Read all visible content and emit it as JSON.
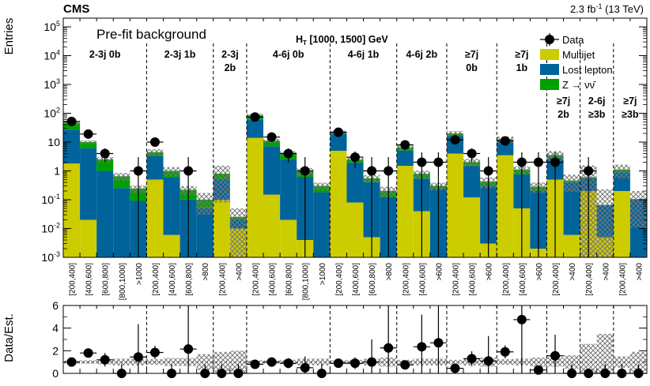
{
  "header": {
    "experiment": "CMS",
    "lumi": "2.3 fb",
    "lumi_sup": "-1",
    "energy": " (13 TeV)"
  },
  "chart_data": [
    {
      "type": "bar",
      "stacked": true,
      "yscale": "log",
      "ylabel": "Entries",
      "title": "Pre-fit background",
      "ht_label_main": "H",
      "ht_label_sub": "T",
      "ht_label_rest": " [1000, 1500] GeV",
      "ylim": [
        0.001,
        200000
      ],
      "ytick_labels": [
        "10^{-3}",
        "10^{-2}",
        "10^{-1}",
        "1",
        "10",
        "10^{2}",
        "10^{3}",
        "10^{4}",
        "10^{5}"
      ],
      "categories": [
        "[200,400]",
        "[400,600]",
        "[600,800]",
        "[800,1000]",
        ">1000",
        "[200,400]",
        "[400,600]",
        "[600,800]",
        ">800",
        "[200,400]",
        ">400",
        "[200,400]",
        "[400,600]",
        "[600,800]",
        "[800,1000]",
        ">1000",
        "[200,400]",
        "[400,600]",
        "[600,800]",
        ">800",
        "[200,400]",
        "[400,600]",
        ">600",
        "[200,400]",
        "[400,600]",
        ">600",
        "[200,400]",
        "[400,600]",
        ">600",
        "[200,400]",
        ">400",
        "[200,400]",
        ">400",
        "[200,400]",
        ">400"
      ],
      "regions": [
        {
          "label": [
            "2-3j 0b"
          ],
          "start": 0,
          "end": 5
        },
        {
          "label": [
            "2-3j 1b"
          ],
          "start": 5,
          "end": 9
        },
        {
          "label": [
            "2-3j",
            "2b"
          ],
          "start": 9,
          "end": 11
        },
        {
          "label": [
            "4-6j 0b"
          ],
          "start": 11,
          "end": 16
        },
        {
          "label": [
            "4-6j 1b"
          ],
          "start": 16,
          "end": 20
        },
        {
          "label": [
            "4-6j 2b"
          ],
          "start": 20,
          "end": 23
        },
        {
          "label": [
            "≥7j",
            "0b"
          ],
          "start": 23,
          "end": 26
        },
        {
          "label": [
            "≥7j",
            "1b"
          ],
          "start": 26,
          "end": 29
        },
        {
          "label": [
            "≥7j",
            "2b"
          ],
          "start": 29,
          "end": 31
        },
        {
          "label": [
            "2-6j",
            "≥3b"
          ],
          "start": 31,
          "end": 33
        },
        {
          "label": [
            "≥7j",
            "≥3b"
          ],
          "start": 33,
          "end": 35
        }
      ],
      "legend": [
        {
          "name": "Data",
          "kind": "marker"
        },
        {
          "name": "Multijet",
          "kind": "fill",
          "color": "#cccc00"
        },
        {
          "name": "Lost lepton",
          "kind": "fill",
          "color": "#00649b"
        },
        {
          "name": "Z → νν̄",
          "kind": "fill",
          "color": "#00a000"
        }
      ],
      "legend_position": "top-right",
      "colors": {
        "multijet": "#cccc00",
        "lostlepton": "#00649b",
        "zinv": "#00a000",
        "data": "#000000",
        "uncertainty": "#777777"
      },
      "series": [
        {
          "name": "Multijet",
          "values": [
            1.8,
            0.02,
            0.001,
            0.001,
            0.001,
            0.5,
            0.006,
            0.001,
            0.001,
            0.1,
            0.01,
            14,
            0.15,
            0.02,
            0.004,
            0.001,
            5,
            0.08,
            0.005,
            0.001,
            1.5,
            0.04,
            0.001,
            4,
            0.12,
            0.003,
            3.5,
            0.05,
            0.002,
            0.5,
            0.006,
            0.2,
            0.005,
            0.2,
            0.001
          ]
        },
        {
          "name": "Lost lepton",
          "values": [
            25,
            6,
            1,
            0.25,
            0.09,
            2.8,
            0.6,
            0.1,
            0.05,
            0.4,
            0.01,
            45,
            7,
            2.5,
            0.6,
            0.18,
            14,
            1.8,
            0.4,
            0.12,
            3.6,
            0.5,
            0.24,
            12,
            1.4,
            0.3,
            7.5,
            0.7,
            0.2,
            2.4,
            0.4,
            0.35,
            0.06,
            0.7,
            0.1
          ]
        },
        {
          "name": "Z → νν̄",
          "values": [
            20,
            4,
            1.5,
            0.4,
            0.15,
            1.2,
            0.4,
            0.12,
            0.05,
            0.3,
            0.005,
            25,
            4,
            1.5,
            0.35,
            0.12,
            3,
            0.6,
            0.15,
            0.08,
            1.5,
            0.25,
            0.06,
            4,
            0.5,
            0.12,
            1.5,
            0.35,
            0.08,
            0.6,
            0.06,
            0.05,
            0.001,
            0.2,
            0.005
          ]
        }
      ],
      "data": [
        52,
        19,
        4,
        0,
        1,
        10,
        0,
        1,
        0,
        0,
        0,
        74,
        15,
        4,
        1,
        0,
        22,
        3,
        1,
        1,
        8,
        2,
        2,
        12,
        4,
        1,
        11,
        2,
        2,
        2,
        0,
        1,
        0,
        0,
        0
      ]
    },
    {
      "type": "scatter",
      "ylabel": "Data/Est.",
      "ylim": [
        0,
        6
      ],
      "yticks": [
        0,
        2,
        4,
        6
      ],
      "values": [
        1.0,
        1.8,
        1.2,
        0,
        1.45,
        1.85,
        0,
        2.15,
        0,
        0,
        0,
        0.8,
        1.0,
        0.9,
        0.5,
        0,
        0.9,
        0.9,
        1.0,
        2.25,
        0.75,
        2.35,
        2.7,
        0.45,
        1.3,
        1.1,
        1.9,
        4.75,
        0.3,
        1.55,
        0,
        0,
        0,
        0,
        0
      ],
      "uncertainty_band": [
        0.15,
        0.15,
        0.2,
        0.3,
        0.3,
        0.25,
        0.35,
        0.35,
        0.7,
        0.9,
        1.0,
        0.15,
        0.15,
        0.2,
        0.3,
        0.3,
        0.15,
        0.2,
        0.3,
        0.4,
        0.2,
        0.3,
        0.3,
        0.2,
        0.3,
        0.4,
        0.25,
        0.3,
        0.4,
        0.4,
        0.6,
        1.6,
        2.5,
        0.5,
        0.9
      ]
    }
  ]
}
